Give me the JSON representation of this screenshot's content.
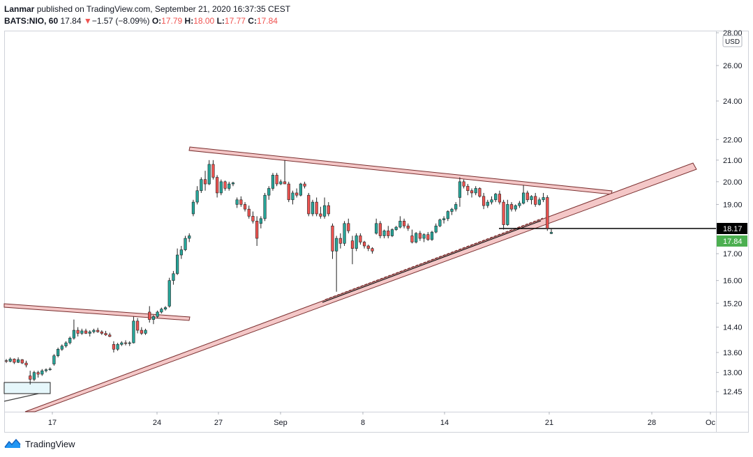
{
  "header": {
    "publisher": "Lanmar",
    "published_text": " published on TradingView.com, September 21, 2020 16:37:35 CEST",
    "symbol": "BATS:NIO, 60",
    "last": "17.84",
    "change_arrow": "▼",
    "change": "−1.57 (−8.09%)",
    "o_label": "O:",
    "o_value": "17.79",
    "h_label": "H:",
    "h_value": "18.00",
    "l_label": "L:",
    "l_value": "17.77",
    "c_label": "C:",
    "c_value": "17.84"
  },
  "footer": {
    "brand": "TradingView"
  },
  "colors": {
    "up": "#26a69a",
    "down": "#ef5350",
    "channel_fill": "#f4c7c7",
    "channel_edge": "#7a2f2f",
    "last_price_tag": "#4caf50",
    "level_tag": "#000000"
  },
  "chart_data": {
    "type": "candlestick",
    "symbol": "BATS:NIO",
    "interval": "60",
    "currency": "USD",
    "y_scale": "log",
    "ylim": [
      12.2,
      28.0
    ],
    "y_ticks": [
      "28.00",
      "26.00",
      "24.00",
      "22.00",
      "21.00",
      "20.00",
      "19.00",
      "18.00",
      "17.00",
      "16.00",
      "15.20",
      "14.40",
      "13.60",
      "13.00",
      "12.45"
    ],
    "x_labels": [
      "17",
      "24",
      "27",
      "Sep",
      "8",
      "14",
      "21",
      "28",
      "Oc"
    ],
    "price_tags": [
      {
        "label": "18.17",
        "value": 18.17,
        "color": "#000000"
      },
      {
        "label": "17.84",
        "value": 17.84,
        "color": "#4caf50"
      }
    ],
    "candles": [
      [
        13.35,
        13.4,
        13.28,
        13.33
      ],
      [
        13.33,
        13.45,
        13.3,
        13.4
      ],
      [
        13.4,
        13.42,
        13.25,
        13.3
      ],
      [
        13.3,
        13.45,
        13.28,
        13.38
      ],
      [
        13.38,
        13.4,
        13.25,
        13.28
      ],
      [
        13.28,
        13.35,
        13.15,
        13.22
      ],
      [
        12.9,
        13.05,
        12.65,
        12.8
      ],
      [
        12.8,
        13.05,
        12.75,
        13.0
      ],
      [
        13.0,
        13.05,
        12.85,
        12.95
      ],
      [
        12.95,
        13.1,
        12.9,
        13.05
      ],
      [
        13.05,
        13.12,
        13.0,
        13.08
      ],
      [
        13.08,
        13.15,
        13.05,
        13.1
      ],
      [
        13.25,
        13.55,
        13.2,
        13.5
      ],
      [
        13.5,
        13.75,
        13.45,
        13.7
      ],
      [
        13.7,
        13.85,
        13.65,
        13.8
      ],
      [
        13.8,
        13.95,
        13.75,
        13.9
      ],
      [
        13.9,
        14.1,
        13.85,
        14.05
      ],
      [
        14.05,
        14.65,
        14.0,
        14.3
      ],
      [
        14.3,
        14.4,
        14.1,
        14.2
      ],
      [
        14.2,
        14.35,
        14.15,
        14.28
      ],
      [
        14.28,
        14.35,
        14.18,
        14.2
      ],
      [
        14.2,
        14.3,
        14.1,
        14.25
      ],
      [
        14.25,
        14.35,
        14.2,
        14.3
      ],
      [
        14.3,
        14.38,
        14.22,
        14.25
      ],
      [
        14.25,
        14.3,
        14.15,
        14.2
      ],
      [
        14.2,
        14.28,
        14.12,
        14.15
      ],
      [
        14.15,
        14.22,
        14.08,
        14.1
      ],
      [
        13.85,
        13.95,
        13.6,
        13.7
      ],
      [
        13.7,
        13.9,
        13.65,
        13.85
      ],
      [
        13.85,
        13.95,
        13.8,
        13.9
      ],
      [
        13.9,
        13.98,
        13.82,
        13.88
      ],
      [
        13.88,
        13.95,
        13.8,
        13.9
      ],
      [
        13.9,
        14.75,
        13.88,
        14.6
      ],
      [
        14.6,
        14.7,
        14.2,
        14.3
      ],
      [
        14.3,
        14.4,
        14.15,
        14.2
      ],
      [
        14.2,
        14.35,
        14.15,
        14.3
      ],
      [
        14.9,
        15.1,
        14.55,
        14.65
      ],
      [
        14.65,
        14.8,
        14.5,
        14.75
      ],
      [
        14.75,
        14.95,
        14.7,
        14.9
      ],
      [
        14.9,
        15.05,
        14.85,
        15.0
      ],
      [
        15.0,
        15.1,
        14.95,
        15.05
      ],
      [
        15.1,
        16.1,
        15.05,
        16.0
      ],
      [
        16.0,
        16.35,
        15.85,
        16.25
      ],
      [
        16.25,
        17.2,
        16.2,
        16.95
      ],
      [
        16.95,
        17.3,
        16.8,
        17.15
      ],
      [
        17.15,
        17.7,
        17.1,
        17.6
      ],
      [
        17.6,
        17.8,
        17.45,
        17.7
      ],
      [
        18.6,
        19.2,
        18.5,
        19.1
      ],
      [
        19.1,
        19.8,
        19.0,
        19.6
      ],
      [
        19.6,
        20.2,
        19.5,
        20.1
      ],
      [
        20.1,
        20.5,
        19.6,
        19.9
      ],
      [
        19.9,
        21.0,
        19.85,
        20.8
      ],
      [
        20.8,
        21.0,
        20.1,
        20.2
      ],
      [
        20.2,
        20.3,
        19.3,
        19.5
      ],
      [
        19.5,
        20.1,
        19.4,
        20.0
      ],
      [
        20.0,
        20.05,
        19.6,
        19.7
      ],
      [
        19.7,
        20.0,
        19.6,
        19.9
      ],
      [
        19.9,
        20.0,
        19.8,
        19.95
      ],
      [
        19.0,
        19.3,
        18.85,
        19.2
      ],
      [
        19.2,
        19.35,
        18.9,
        19.0
      ],
      [
        19.0,
        19.1,
        18.7,
        18.8
      ],
      [
        18.8,
        18.95,
        18.4,
        18.5
      ],
      [
        18.5,
        18.7,
        18.2,
        18.3
      ],
      [
        18.3,
        18.5,
        17.3,
        17.6
      ],
      [
        18.2,
        18.5,
        18.0,
        18.4
      ],
      [
        18.4,
        19.5,
        18.3,
        19.4
      ],
      [
        19.4,
        19.8,
        19.2,
        19.7
      ],
      [
        19.7,
        20.4,
        19.6,
        20.3
      ],
      [
        20.3,
        20.4,
        19.8,
        19.9
      ],
      [
        19.9,
        20.1,
        19.85,
        20.0
      ],
      [
        20.0,
        21.0,
        19.9,
        19.9
      ],
      [
        19.9,
        20.0,
        19.1,
        19.2
      ],
      [
        19.2,
        19.6,
        19.0,
        19.5
      ],
      [
        19.5,
        19.7,
        19.3,
        19.4
      ],
      [
        19.4,
        19.95,
        19.35,
        19.9
      ],
      [
        19.9,
        20.0,
        19.7,
        19.8
      ],
      [
        19.4,
        19.5,
        18.5,
        18.6
      ],
      [
        18.6,
        19.2,
        18.5,
        19.1
      ],
      [
        19.1,
        19.3,
        18.5,
        18.6
      ],
      [
        18.6,
        18.9,
        18.4,
        18.5
      ],
      [
        18.5,
        19.3,
        18.4,
        18.95
      ],
      [
        18.95,
        19.1,
        18.5,
        18.6
      ],
      [
        18.1,
        18.2,
        16.8,
        17.1
      ],
      [
        17.1,
        17.7,
        15.6,
        17.6
      ],
      [
        17.6,
        17.8,
        17.2,
        17.4
      ],
      [
        17.4,
        18.3,
        17.3,
        18.2
      ],
      [
        18.2,
        18.4,
        17.8,
        17.9
      ],
      [
        17.5,
        17.7,
        16.6,
        17.2
      ],
      [
        17.2,
        17.8,
        17.1,
        17.7
      ],
      [
        17.7,
        17.8,
        17.35,
        17.45
      ],
      [
        17.45,
        17.5,
        17.2,
        17.3
      ],
      [
        17.3,
        17.35,
        17.1,
        17.2
      ],
      [
        17.2,
        17.25,
        17.0,
        17.1
      ],
      [
        17.8,
        18.4,
        17.75,
        18.2
      ],
      [
        18.2,
        18.3,
        17.6,
        17.7
      ],
      [
        17.7,
        17.95,
        17.6,
        17.9
      ],
      [
        17.9,
        18.1,
        17.6,
        17.7
      ],
      [
        17.7,
        18.0,
        17.65,
        17.95
      ],
      [
        17.95,
        18.1,
        17.9,
        18.05
      ],
      [
        18.05,
        18.5,
        18.0,
        18.3
      ],
      [
        18.3,
        18.4,
        18.0,
        18.1
      ],
      [
        18.1,
        18.2,
        17.9,
        18.0
      ],
      [
        17.7,
        17.95,
        17.4,
        17.45
      ],
      [
        17.45,
        17.85,
        17.4,
        17.8
      ],
      [
        17.8,
        17.9,
        17.5,
        17.6
      ],
      [
        17.6,
        17.8,
        17.45,
        17.75
      ],
      [
        17.75,
        17.85,
        17.5,
        17.55
      ],
      [
        17.55,
        17.9,
        17.5,
        17.85
      ],
      [
        17.85,
        18.2,
        17.8,
        18.1
      ],
      [
        18.1,
        18.4,
        18.05,
        18.35
      ],
      [
        18.35,
        18.5,
        18.2,
        18.4
      ],
      [
        18.4,
        18.75,
        18.3,
        18.7
      ],
      [
        18.7,
        18.85,
        18.55,
        18.8
      ],
      [
        18.8,
        19.1,
        18.7,
        19.0
      ],
      [
        19.3,
        20.2,
        18.9,
        20.0
      ],
      [
        20.0,
        20.1,
        19.7,
        19.8
      ],
      [
        19.8,
        19.9,
        19.4,
        19.6
      ],
      [
        19.6,
        19.7,
        19.3,
        19.5
      ],
      [
        19.5,
        19.8,
        19.4,
        19.7
      ],
      [
        19.7,
        19.75,
        19.3,
        19.35
      ],
      [
        19.35,
        19.5,
        18.8,
        18.95
      ],
      [
        18.95,
        19.2,
        18.85,
        19.1
      ],
      [
        19.1,
        19.35,
        19.0,
        19.2
      ],
      [
        19.2,
        19.5,
        19.1,
        19.45
      ],
      [
        19.45,
        19.6,
        19.0,
        19.1
      ],
      [
        19.1,
        19.2,
        17.95,
        18.15
      ],
      [
        18.15,
        19.2,
        18.1,
        19.0
      ],
      [
        19.0,
        19.1,
        18.7,
        18.8
      ],
      [
        18.8,
        19.0,
        18.7,
        18.95
      ],
      [
        18.95,
        19.15,
        18.85,
        19.05
      ],
      [
        19.05,
        19.85,
        19.0,
        19.5
      ],
      [
        19.5,
        19.6,
        19.1,
        19.2
      ],
      [
        19.2,
        19.4,
        19.0,
        19.35
      ],
      [
        19.35,
        19.5,
        18.9,
        19.0
      ],
      [
        19.0,
        19.3,
        18.95,
        19.2
      ],
      [
        19.2,
        19.5,
        19.1,
        19.3
      ],
      [
        19.3,
        19.4,
        17.9,
        18.0
      ],
      [
        17.79,
        18.0,
        17.77,
        17.84
      ]
    ]
  }
}
